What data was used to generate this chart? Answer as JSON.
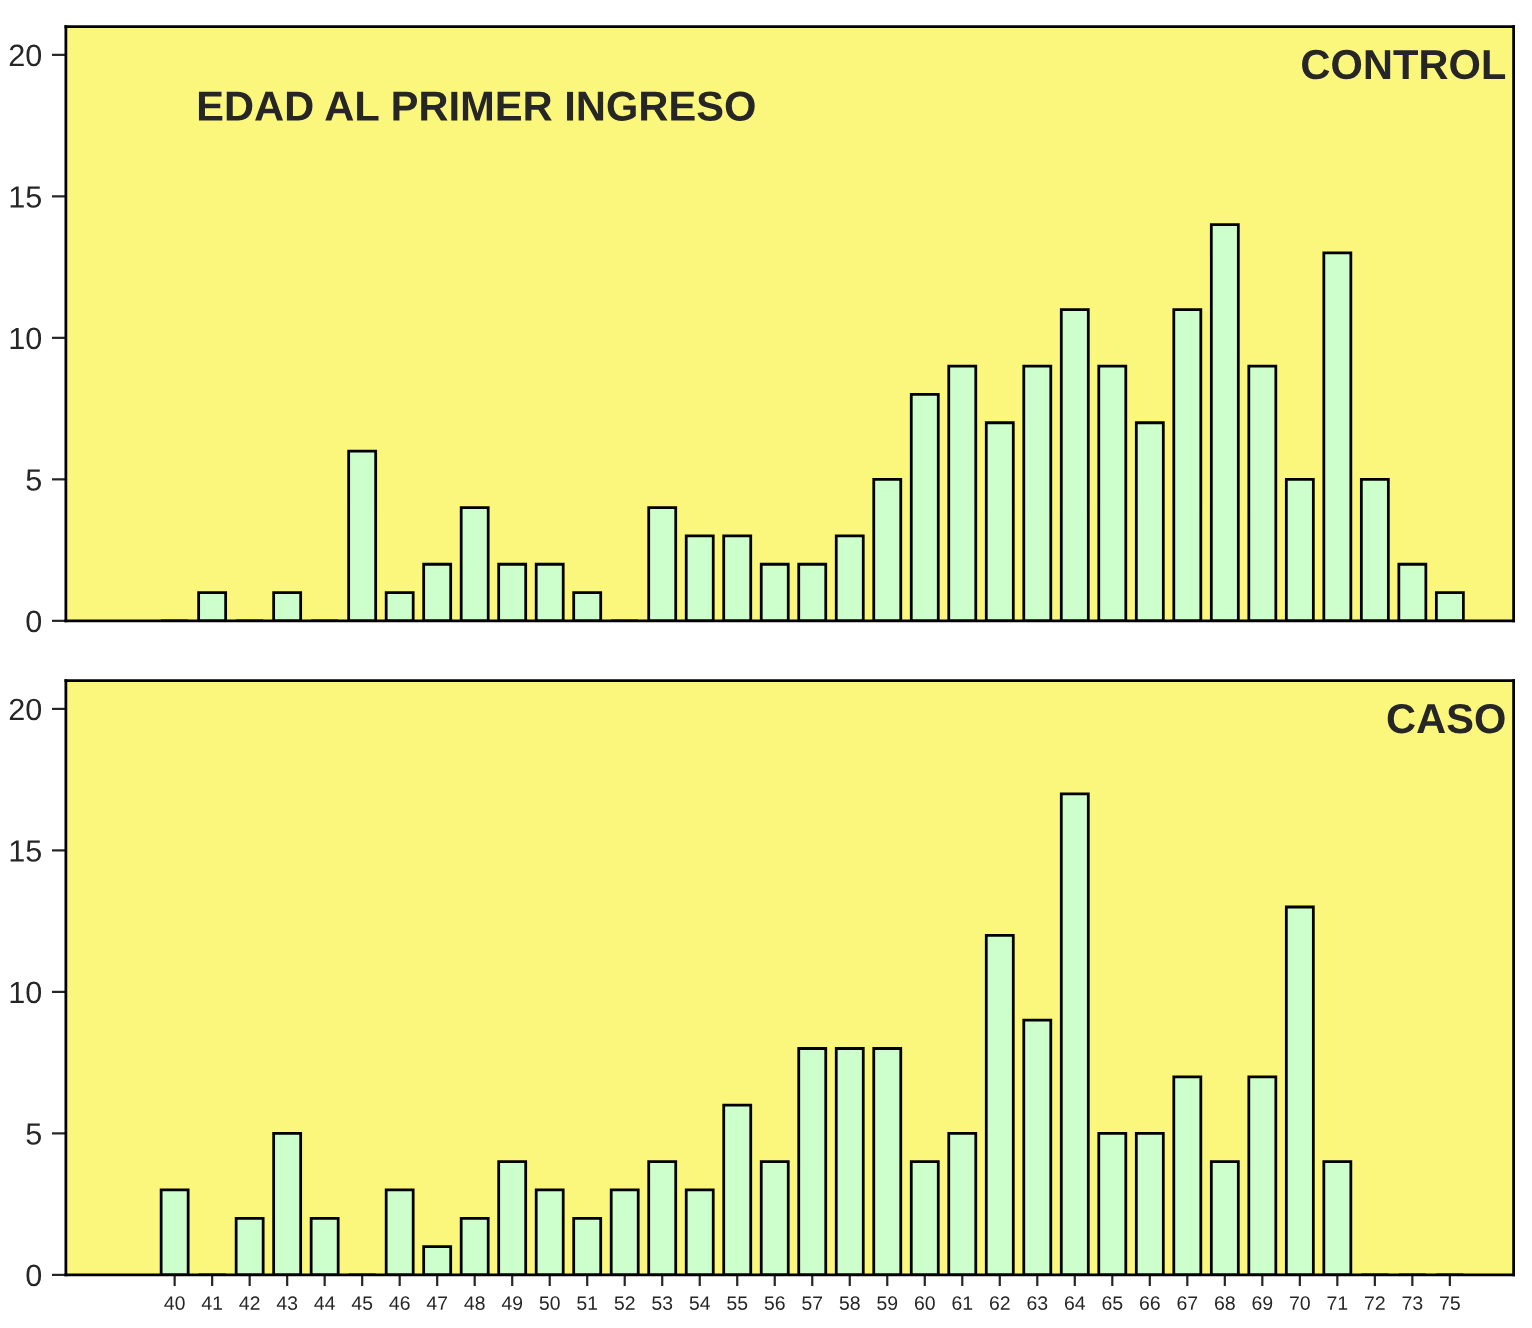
{
  "chart_data": [
    {
      "type": "bar",
      "title": "EDAD AL PRIMER INGRESO",
      "annotations": [
        "CONTROL"
      ],
      "categories": [
        "40",
        "41",
        "42",
        "43",
        "44",
        "45",
        "46",
        "47",
        "48",
        "49",
        "50",
        "51",
        "52",
        "53",
        "54",
        "55",
        "56",
        "57",
        "58",
        "59",
        "60",
        "61",
        "62",
        "63",
        "64",
        "65",
        "66",
        "67",
        "68",
        "69",
        "70",
        "71",
        "72",
        "73",
        "75"
      ],
      "series": [
        {
          "color": "#ccffcc",
          "values": [
            0,
            1,
            0,
            1,
            0,
            6,
            1,
            2,
            4,
            2,
            2,
            1,
            0,
            4,
            3,
            3,
            2,
            2,
            3,
            5,
            8,
            9,
            7,
            9,
            11,
            9,
            7,
            11,
            14,
            9,
            5,
            13,
            5,
            2,
            1
          ]
        }
      ],
      "ylim": [
        0,
        21
      ],
      "yticks": [
        0,
        5,
        10,
        15,
        20
      ],
      "tick_labels": "y",
      "grid": false,
      "legend": false
    },
    {
      "type": "bar",
      "annotations": [
        "CASO"
      ],
      "categories": [
        "40",
        "41",
        "42",
        "43",
        "44",
        "45",
        "46",
        "47",
        "48",
        "49",
        "50",
        "51",
        "52",
        "53",
        "54",
        "55",
        "56",
        "57",
        "58",
        "59",
        "60",
        "61",
        "62",
        "63",
        "64",
        "65",
        "66",
        "67",
        "68",
        "69",
        "70",
        "71",
        "72",
        "73",
        "75"
      ],
      "series": [
        {
          "color": "#ccffcc",
          "values": [
            3,
            0,
            2,
            5,
            2,
            0,
            3,
            1,
            2,
            4,
            3,
            2,
            3,
            4,
            3,
            6,
            4,
            8,
            8,
            8,
            4,
            5,
            12,
            9,
            17,
            5,
            5,
            7,
            4,
            7,
            13,
            4,
            0,
            0,
            0
          ]
        }
      ],
      "ylim": [
        0,
        21
      ],
      "yticks": [
        0,
        5,
        10,
        15,
        20
      ],
      "grid": false,
      "legend": false
    }
  ]
}
